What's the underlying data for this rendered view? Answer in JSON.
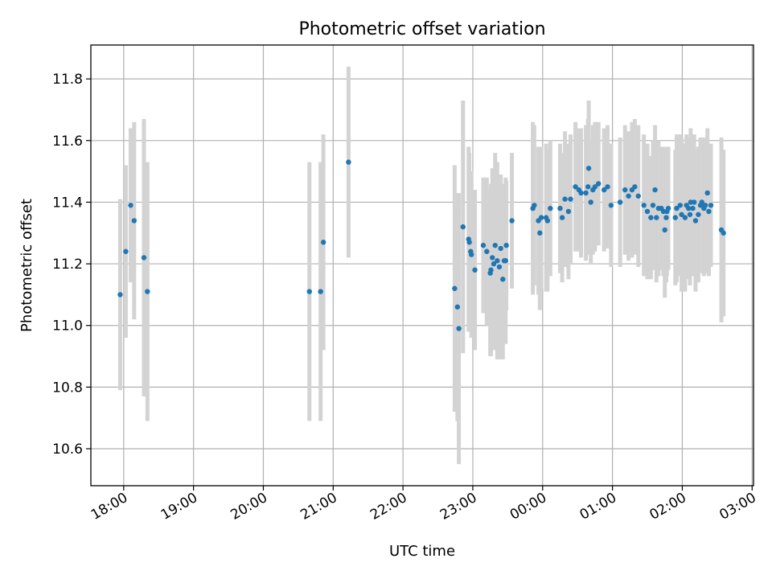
{
  "chart_data": {
    "type": "scatter",
    "title": "Photometric offset variation",
    "xlabel": "UTC time",
    "ylabel": "Photometric offset",
    "x_unit": "hours since 18:00 UTC",
    "xlim": [
      -0.47,
      9.02
    ],
    "ylim": [
      10.48,
      11.91
    ],
    "grid": true,
    "x_ticks": [
      {
        "value": 0,
        "label": "18:00"
      },
      {
        "value": 1,
        "label": "19:00"
      },
      {
        "value": 2,
        "label": "20:00"
      },
      {
        "value": 3,
        "label": "21:00"
      },
      {
        "value": 4,
        "label": "22:00"
      },
      {
        "value": 5,
        "label": "23:00"
      },
      {
        "value": 6,
        "label": "00:00"
      },
      {
        "value": 7,
        "label": "01:00"
      },
      {
        "value": 8,
        "label": "02:00"
      },
      {
        "value": 9,
        "label": "03:00"
      }
    ],
    "y_ticks": [
      {
        "value": 10.6,
        "label": "10.6"
      },
      {
        "value": 10.8,
        "label": "10.8"
      },
      {
        "value": 11.0,
        "label": "11.0"
      },
      {
        "value": 11.2,
        "label": "11.2"
      },
      {
        "value": 11.4,
        "label": "11.4"
      },
      {
        "value": 11.6,
        "label": "11.6"
      },
      {
        "value": 11.8,
        "label": "11.8"
      }
    ],
    "series": [
      {
        "name": "Photometric offset",
        "marker_color": "#1f77b4",
        "errorbar_color": "#d3d3d3",
        "columns": [
          "x_hours",
          "y",
          "y_err"
        ],
        "points": [
          [
            -0.05,
            11.1,
            0.31
          ],
          [
            0.03,
            11.24,
            0.28
          ],
          [
            0.1,
            11.39,
            0.25
          ],
          [
            0.15,
            11.34,
            0.32
          ],
          [
            0.29,
            11.22,
            0.45
          ],
          [
            0.34,
            11.11,
            0.42
          ],
          [
            2.66,
            11.11,
            0.42
          ],
          [
            2.82,
            11.11,
            0.42
          ],
          [
            2.86,
            11.27,
            0.35
          ],
          [
            3.22,
            11.53,
            0.31
          ],
          [
            4.74,
            11.12,
            0.4
          ],
          [
            4.78,
            11.06,
            0.37
          ],
          [
            4.8,
            10.99,
            0.44
          ],
          [
            4.86,
            11.32,
            0.41
          ],
          [
            4.94,
            11.28,
            0.3
          ],
          [
            4.95,
            11.27,
            0.29
          ],
          [
            4.97,
            11.24,
            0.26
          ],
          [
            4.98,
            11.23,
            0.27
          ],
          [
            5.03,
            11.18,
            0.26
          ],
          [
            5.15,
            11.26,
            0.22
          ],
          [
            5.2,
            11.24,
            0.24
          ],
          [
            5.25,
            11.17,
            0.27
          ],
          [
            5.26,
            11.18,
            0.28
          ],
          [
            5.28,
            11.22,
            0.29
          ],
          [
            5.3,
            11.2,
            0.28
          ],
          [
            5.32,
            11.26,
            0.3
          ],
          [
            5.35,
            11.21,
            0.32
          ],
          [
            5.38,
            11.19,
            0.3
          ],
          [
            5.4,
            11.25,
            0.24
          ],
          [
            5.43,
            11.15,
            0.26
          ],
          [
            5.45,
            11.21,
            0.25
          ],
          [
            5.47,
            11.21,
            0.27
          ],
          [
            5.48,
            11.26,
            0.21
          ],
          [
            5.56,
            11.34,
            0.22
          ],
          [
            5.86,
            11.38,
            0.28
          ],
          [
            5.88,
            11.39,
            0.26
          ],
          [
            5.94,
            11.34,
            0.24
          ],
          [
            5.96,
            11.3,
            0.25
          ],
          [
            5.98,
            11.35,
            0.23
          ],
          [
            6.05,
            11.35,
            0.24
          ],
          [
            6.07,
            11.34,
            0.23
          ],
          [
            6.11,
            11.38,
            0.22
          ],
          [
            6.25,
            11.38,
            0.21
          ],
          [
            6.28,
            11.35,
            0.21
          ],
          [
            6.32,
            11.41,
            0.22
          ],
          [
            6.37,
            11.37,
            0.22
          ],
          [
            6.4,
            11.41,
            0.21
          ],
          [
            6.47,
            11.45,
            0.21
          ],
          [
            6.52,
            11.44,
            0.2
          ],
          [
            6.55,
            11.43,
            0.21
          ],
          [
            6.62,
            11.43,
            0.22
          ],
          [
            6.65,
            11.45,
            0.22
          ],
          [
            6.66,
            11.51,
            0.22
          ],
          [
            6.69,
            11.4,
            0.2
          ],
          [
            6.72,
            11.44,
            0.21
          ],
          [
            6.75,
            11.45,
            0.21
          ],
          [
            6.8,
            11.46,
            0.2
          ],
          [
            6.88,
            11.44,
            0.2
          ],
          [
            6.93,
            11.45,
            0.2
          ],
          [
            6.98,
            11.39,
            0.2
          ],
          [
            7.11,
            11.4,
            0.21
          ],
          [
            7.18,
            11.44,
            0.21
          ],
          [
            7.23,
            11.42,
            0.21
          ],
          [
            7.28,
            11.44,
            0.22
          ],
          [
            7.32,
            11.45,
            0.22
          ],
          [
            7.37,
            11.42,
            0.23
          ],
          [
            7.45,
            11.39,
            0.23
          ],
          [
            7.5,
            11.37,
            0.22
          ],
          [
            7.55,
            11.35,
            0.2
          ],
          [
            7.58,
            11.39,
            0.21
          ],
          [
            7.61,
            11.44,
            0.21
          ],
          [
            7.63,
            11.35,
            0.21
          ],
          [
            7.66,
            11.38,
            0.22
          ],
          [
            7.7,
            11.38,
            0.2
          ],
          [
            7.73,
            11.37,
            0.21
          ],
          [
            7.75,
            11.31,
            0.22
          ],
          [
            7.77,
            11.35,
            0.21
          ],
          [
            7.78,
            11.37,
            0.21
          ],
          [
            7.8,
            11.38,
            0.2
          ],
          [
            7.9,
            11.35,
            0.22
          ],
          [
            7.92,
            11.38,
            0.24
          ],
          [
            7.97,
            11.39,
            0.23
          ],
          [
            7.99,
            11.36,
            0.25
          ],
          [
            8.04,
            11.35,
            0.24
          ],
          [
            8.06,
            11.39,
            0.23
          ],
          [
            8.09,
            11.38,
            0.23
          ],
          [
            8.11,
            11.36,
            0.23
          ],
          [
            8.12,
            11.4,
            0.24
          ],
          [
            8.15,
            11.38,
            0.22
          ],
          [
            8.17,
            11.4,
            0.22
          ],
          [
            8.19,
            11.34,
            0.23
          ],
          [
            8.23,
            11.36,
            0.22
          ],
          [
            8.26,
            11.39,
            0.22
          ],
          [
            8.28,
            11.4,
            0.21
          ],
          [
            8.31,
            11.38,
            0.22
          ],
          [
            8.33,
            11.39,
            0.22
          ],
          [
            8.36,
            11.43,
            0.21
          ],
          [
            8.38,
            11.37,
            0.21
          ],
          [
            8.41,
            11.39,
            0.2
          ],
          [
            8.56,
            11.31,
            0.3
          ],
          [
            8.59,
            11.3,
            0.27
          ]
        ]
      }
    ]
  }
}
